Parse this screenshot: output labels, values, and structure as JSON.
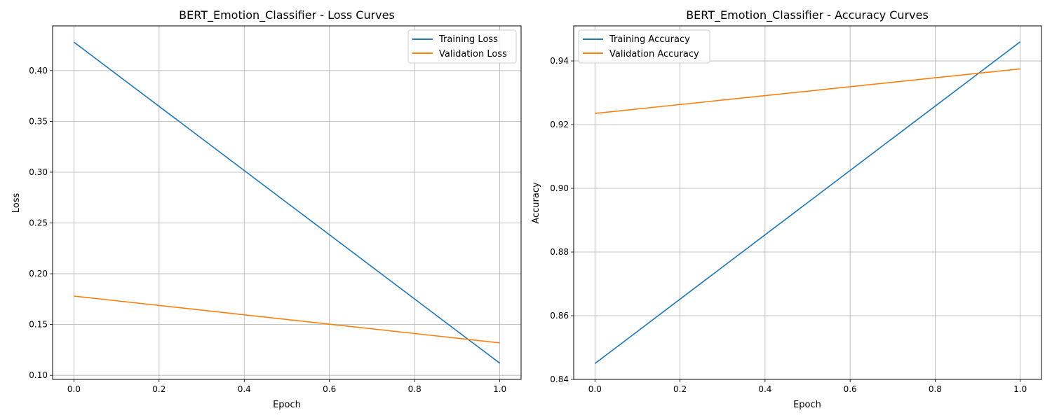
{
  "colors": {
    "training": "#1f77b4",
    "validation": "#ff7f0e",
    "grid": "#b0b0b0"
  },
  "chart_data": [
    {
      "type": "line",
      "title": "BERT_Emotion_Classifier - Loss Curves",
      "xlabel": "Epoch",
      "ylabel": "Loss",
      "xlim": [
        -0.05,
        1.05
      ],
      "ylim": [
        0.096,
        0.444
      ],
      "xticks": [
        0.0,
        0.2,
        0.4,
        0.6,
        0.8,
        1.0
      ],
      "xtick_labels": [
        "0.0",
        "0.2",
        "0.4",
        "0.6",
        "0.8",
        "1.0"
      ],
      "yticks": [
        0.1,
        0.15,
        0.2,
        0.25,
        0.3,
        0.35,
        0.4
      ],
      "ytick_labels": [
        "0.10",
        "0.15",
        "0.20",
        "0.25",
        "0.30",
        "0.35",
        "0.40"
      ],
      "grid": true,
      "legend": "top-right",
      "series": [
        {
          "name": "Training Loss",
          "x": [
            0.0,
            1.0
          ],
          "y": [
            0.428,
            0.112
          ]
        },
        {
          "name": "Validation Loss",
          "x": [
            0.0,
            1.0
          ],
          "y": [
            0.178,
            0.132
          ]
        }
      ]
    },
    {
      "type": "line",
      "title": "BERT_Emotion_Classifier - Accuracy Curves",
      "xlabel": "Epoch",
      "ylabel": "Accuracy",
      "xlim": [
        -0.05,
        1.05
      ],
      "ylim": [
        0.84,
        0.951
      ],
      "xticks": [
        0.0,
        0.2,
        0.4,
        0.6,
        0.8,
        1.0
      ],
      "xtick_labels": [
        "0.0",
        "0.2",
        "0.4",
        "0.6",
        "0.8",
        "1.0"
      ],
      "yticks": [
        0.84,
        0.86,
        0.88,
        0.9,
        0.92,
        0.94
      ],
      "ytick_labels": [
        "0.84",
        "0.86",
        "0.88",
        "0.90",
        "0.92",
        "0.94"
      ],
      "grid": true,
      "legend": "top-left",
      "series": [
        {
          "name": "Training Accuracy",
          "x": [
            0.0,
            1.0
          ],
          "y": [
            0.845,
            0.946
          ]
        },
        {
          "name": "Validation Accuracy",
          "x": [
            0.0,
            1.0
          ],
          "y": [
            0.9235,
            0.9375
          ]
        }
      ]
    }
  ]
}
